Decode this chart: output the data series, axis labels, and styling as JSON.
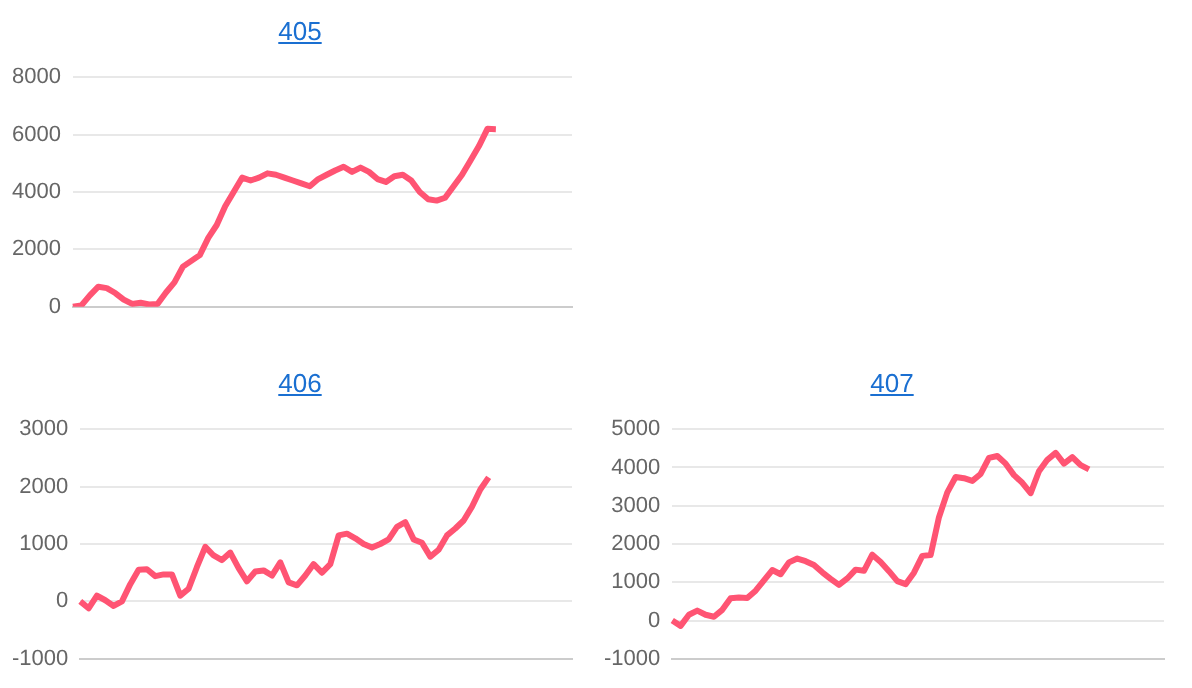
{
  "chart_data": [
    {
      "type": "line",
      "title": "405",
      "categories": [
        null,
        null,
        null,
        null,
        null,
        null,
        null,
        null,
        null,
        null,
        null,
        null,
        null,
        null,
        null,
        null,
        null,
        null,
        null,
        null,
        null,
        null,
        null,
        null,
        null,
        null,
        null,
        null,
        null,
        null,
        null,
        null,
        null,
        null,
        null,
        null,
        null,
        null,
        null,
        null,
        null,
        null,
        null,
        null,
        null,
        null,
        null,
        null,
        null,
        null,
        null,
        null,
        null,
        null,
        null,
        null,
        null,
        null,
        null,
        null
      ],
      "series": [
        {
          "color": "#ff5473",
          "values": [
            0,
            50,
            400,
            700,
            650,
            480,
            250,
            100,
            140,
            80,
            100,
            500,
            850,
            1400,
            1600,
            1800,
            2400,
            2850,
            3500,
            4000,
            4500,
            4400,
            4500,
            4650,
            4600,
            4500,
            4400,
            4300,
            4200,
            4450,
            4600,
            4750,
            4880,
            4700,
            4850,
            4700,
            4450,
            4350,
            4550,
            4600,
            4400,
            4000,
            3750,
            3700,
            3800,
            4200,
            4600,
            5100,
            5600,
            6200,
            6190,
            null,
            null,
            null,
            null,
            null,
            null,
            null,
            null,
            null
          ]
        }
      ],
      "ylim": [
        0,
        8000
      ],
      "yticks": [
        0,
        2000,
        4000,
        6000,
        8000
      ],
      "grid": "y",
      "legend": false,
      "tick_labels": "y",
      "marker": "none"
    },
    {
      "type": "line",
      "title": "406",
      "categories": [
        null,
        null,
        null,
        null,
        null,
        null,
        null,
        null,
        null,
        null,
        null,
        null,
        null,
        null,
        null,
        null,
        null,
        null,
        null,
        null,
        null,
        null,
        null,
        null,
        null,
        null,
        null,
        null,
        null,
        null,
        null,
        null,
        null,
        null,
        null,
        null,
        null,
        null,
        null,
        null,
        null,
        null,
        null,
        null,
        null,
        null,
        null,
        null,
        null,
        null,
        null,
        null,
        null,
        null,
        null,
        null,
        null,
        null,
        null,
        null
      ],
      "series": [
        {
          "color": "#ff5473",
          "values": [
            0,
            -120,
            100,
            20,
            -80,
            0,
            300,
            550,
            560,
            440,
            470,
            470,
            100,
            220,
            600,
            950,
            800,
            720,
            850,
            580,
            350,
            520,
            540,
            450,
            680,
            330,
            280,
            450,
            650,
            500,
            650,
            1150,
            1180,
            1100,
            1000,
            940,
            1000,
            1080,
            1300,
            1380,
            1080,
            1020,
            780,
            900,
            1150,
            1270,
            1410,
            1650,
            1950,
            2160,
            null,
            null,
            null,
            null,
            null,
            null,
            null,
            null,
            null,
            null
          ]
        }
      ],
      "ylim": [
        -1000,
        3000
      ],
      "yticks": [
        -1000,
        0,
        1000,
        2000,
        3000
      ],
      "grid": "y",
      "legend": false,
      "tick_labels": "y",
      "marker": "none"
    },
    {
      "type": "line",
      "title": "407",
      "categories": [
        null,
        null,
        null,
        null,
        null,
        null,
        null,
        null,
        null,
        null,
        null,
        null,
        null,
        null,
        null,
        null,
        null,
        null,
        null,
        null,
        null,
        null,
        null,
        null,
        null,
        null,
        null,
        null,
        null,
        null,
        null,
        null,
        null,
        null,
        null,
        null,
        null,
        null,
        null,
        null,
        null,
        null,
        null,
        null,
        null,
        null,
        null,
        null,
        null,
        null,
        null,
        null,
        null,
        null,
        null,
        null,
        null,
        null,
        null,
        null
      ],
      "series": [
        {
          "color": "#ff5473",
          "values": [
            0,
            -140,
            150,
            260,
            150,
            100,
            280,
            580,
            600,
            590,
            780,
            1050,
            1320,
            1210,
            1520,
            1620,
            1550,
            1450,
            1260,
            1090,
            930,
            1100,
            1330,
            1300,
            1720,
            1530,
            1290,
            1030,
            950,
            1250,
            1690,
            1710,
            2700,
            3350,
            3750,
            3720,
            3650,
            3830,
            4250,
            4300,
            4100,
            3800,
            3600,
            3330,
            3900,
            4200,
            4380,
            4100,
            4270,
            4060,
            3950,
            null,
            null,
            null,
            null,
            null,
            null,
            null,
            null,
            null
          ]
        }
      ],
      "ylim": [
        -1000,
        5000
      ],
      "yticks": [
        -1000,
        0,
        1000,
        2000,
        3000,
        4000,
        5000
      ],
      "grid": "y",
      "legend": false,
      "tick_labels": "y",
      "marker": "none"
    }
  ]
}
